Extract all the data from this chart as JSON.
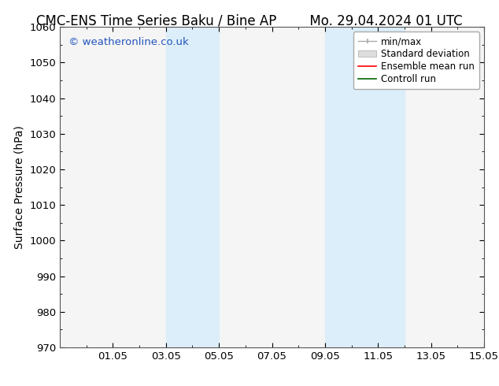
{
  "title_left": "CMC-ENS Time Series Baku / Bine AP",
  "title_right": "Mo. 29.04.2024 01 UTC",
  "ylabel": "Surface Pressure (hPa)",
  "ylim": [
    970,
    1060
  ],
  "yticks": [
    970,
    980,
    990,
    1000,
    1010,
    1020,
    1030,
    1040,
    1050,
    1060
  ],
  "xlim": [
    0,
    16
  ],
  "xtick_labels": [
    "01.05",
    "03.05",
    "05.05",
    "07.05",
    "09.05",
    "11.05",
    "13.05",
    "15.05"
  ],
  "xtick_positions": [
    2,
    4,
    6,
    8,
    10,
    12,
    14,
    16
  ],
  "shaded_bands": [
    {
      "x_start": 4.0,
      "x_end": 6.0
    },
    {
      "x_start": 10.0,
      "x_end": 13.0
    }
  ],
  "shaded_color": "#dceefa",
  "background_color": "#ffffff",
  "plot_bg_color": "#f5f5f5",
  "watermark_text": "© weatheronline.co.uk",
  "watermark_color": "#2255bb",
  "legend_items": [
    {
      "label": "min/max",
      "color": "#aaaaaa",
      "style": "minmax"
    },
    {
      "label": "Standard deviation",
      "color": "#cccccc",
      "style": "stddev"
    },
    {
      "label": "Ensemble mean run",
      "color": "#ff0000",
      "style": "line"
    },
    {
      "label": "Controll run",
      "color": "#006600",
      "style": "line"
    }
  ],
  "title_fontsize": 12,
  "axis_fontsize": 10,
  "tick_fontsize": 9.5,
  "watermark_fontsize": 9.5
}
